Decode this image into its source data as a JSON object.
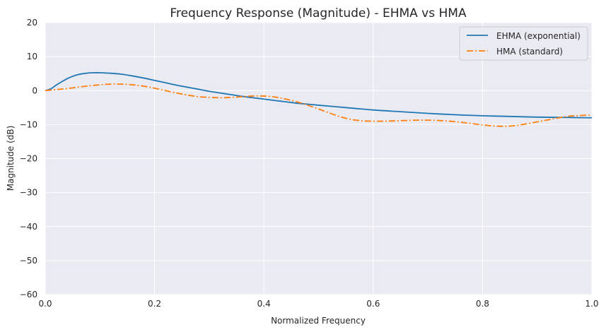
{
  "chart_data": {
    "type": "line",
    "title": "Frequency Response (Magnitude) - EHMA vs HMA",
    "xlabel": "Normalized Frequency",
    "ylabel": "Magnitude (dB)",
    "xlim": [
      0.0,
      1.0
    ],
    "ylim": [
      -60,
      20
    ],
    "xticks": [
      0.0,
      0.2,
      0.4,
      0.6,
      0.8,
      1.0
    ],
    "xtick_labels": [
      "0.0",
      "0.2",
      "0.4",
      "0.6",
      "0.8",
      "1.0"
    ],
    "yticks": [
      -60,
      -50,
      -40,
      -30,
      -20,
      -10,
      0,
      10,
      20
    ],
    "ytick_labels": [
      "−60",
      "−50",
      "−40",
      "−30",
      "−20",
      "−10",
      "0",
      "10",
      "20"
    ],
    "grid": true,
    "legend_position": "top-right",
    "series": [
      {
        "name": "EHMA (exponential)",
        "color": "#1f77b4",
        "linestyle": "solid",
        "points": [
          [
            0.0,
            0.0
          ],
          [
            0.01,
            0.5
          ],
          [
            0.02,
            1.6
          ],
          [
            0.03,
            2.6
          ],
          [
            0.04,
            3.5
          ],
          [
            0.05,
            4.2
          ],
          [
            0.06,
            4.7
          ],
          [
            0.07,
            5.0
          ],
          [
            0.08,
            5.2
          ],
          [
            0.09,
            5.25
          ],
          [
            0.1,
            5.25
          ],
          [
            0.12,
            5.1
          ],
          [
            0.14,
            4.8
          ],
          [
            0.16,
            4.3
          ],
          [
            0.18,
            3.7
          ],
          [
            0.2,
            3.0
          ],
          [
            0.22,
            2.3
          ],
          [
            0.24,
            1.6
          ],
          [
            0.26,
            1.0
          ],
          [
            0.28,
            0.4
          ],
          [
            0.3,
            -0.2
          ],
          [
            0.32,
            -0.7
          ],
          [
            0.34,
            -1.2
          ],
          [
            0.36,
            -1.7
          ],
          [
            0.38,
            -2.1
          ],
          [
            0.4,
            -2.5
          ],
          [
            0.42,
            -2.9
          ],
          [
            0.44,
            -3.3
          ],
          [
            0.46,
            -3.7
          ],
          [
            0.48,
            -4.0
          ],
          [
            0.5,
            -4.3
          ],
          [
            0.55,
            -5.0
          ],
          [
            0.6,
            -5.7
          ],
          [
            0.65,
            -6.2
          ],
          [
            0.7,
            -6.7
          ],
          [
            0.75,
            -7.1
          ],
          [
            0.8,
            -7.4
          ],
          [
            0.85,
            -7.6
          ],
          [
            0.9,
            -7.8
          ],
          [
            0.95,
            -7.9
          ],
          [
            1.0,
            -8.0
          ]
        ]
      },
      {
        "name": "HMA (standard)",
        "color": "#ff7f0e",
        "linestyle": "dashdot",
        "points": [
          [
            0.0,
            0.0
          ],
          [
            0.02,
            0.3
          ],
          [
            0.04,
            0.6
          ],
          [
            0.06,
            1.0
          ],
          [
            0.08,
            1.4
          ],
          [
            0.1,
            1.7
          ],
          [
            0.12,
            1.9
          ],
          [
            0.14,
            1.9
          ],
          [
            0.16,
            1.7
          ],
          [
            0.18,
            1.3
          ],
          [
            0.2,
            0.7
          ],
          [
            0.22,
            0.0
          ],
          [
            0.24,
            -0.7
          ],
          [
            0.26,
            -1.3
          ],
          [
            0.28,
            -1.8
          ],
          [
            0.3,
            -2.0
          ],
          [
            0.32,
            -2.1
          ],
          [
            0.34,
            -2.0
          ],
          [
            0.36,
            -1.8
          ],
          [
            0.38,
            -1.6
          ],
          [
            0.4,
            -1.6
          ],
          [
            0.42,
            -1.9
          ],
          [
            0.44,
            -2.5
          ],
          [
            0.46,
            -3.3
          ],
          [
            0.48,
            -4.3
          ],
          [
            0.5,
            -5.4
          ],
          [
            0.52,
            -6.6
          ],
          [
            0.54,
            -7.7
          ],
          [
            0.56,
            -8.5
          ],
          [
            0.58,
            -8.9
          ],
          [
            0.6,
            -9.0
          ],
          [
            0.62,
            -9.0
          ],
          [
            0.64,
            -8.9
          ],
          [
            0.66,
            -8.8
          ],
          [
            0.68,
            -8.7
          ],
          [
            0.7,
            -8.7
          ],
          [
            0.72,
            -8.8
          ],
          [
            0.74,
            -9.0
          ],
          [
            0.76,
            -9.3
          ],
          [
            0.78,
            -9.7
          ],
          [
            0.8,
            -10.1
          ],
          [
            0.82,
            -10.4
          ],
          [
            0.84,
            -10.5
          ],
          [
            0.86,
            -10.3
          ],
          [
            0.88,
            -9.8
          ],
          [
            0.9,
            -9.2
          ],
          [
            0.92,
            -8.6
          ],
          [
            0.94,
            -8.0
          ],
          [
            0.96,
            -7.5
          ],
          [
            0.98,
            -7.3
          ],
          [
            1.0,
            -7.2
          ]
        ]
      }
    ]
  }
}
